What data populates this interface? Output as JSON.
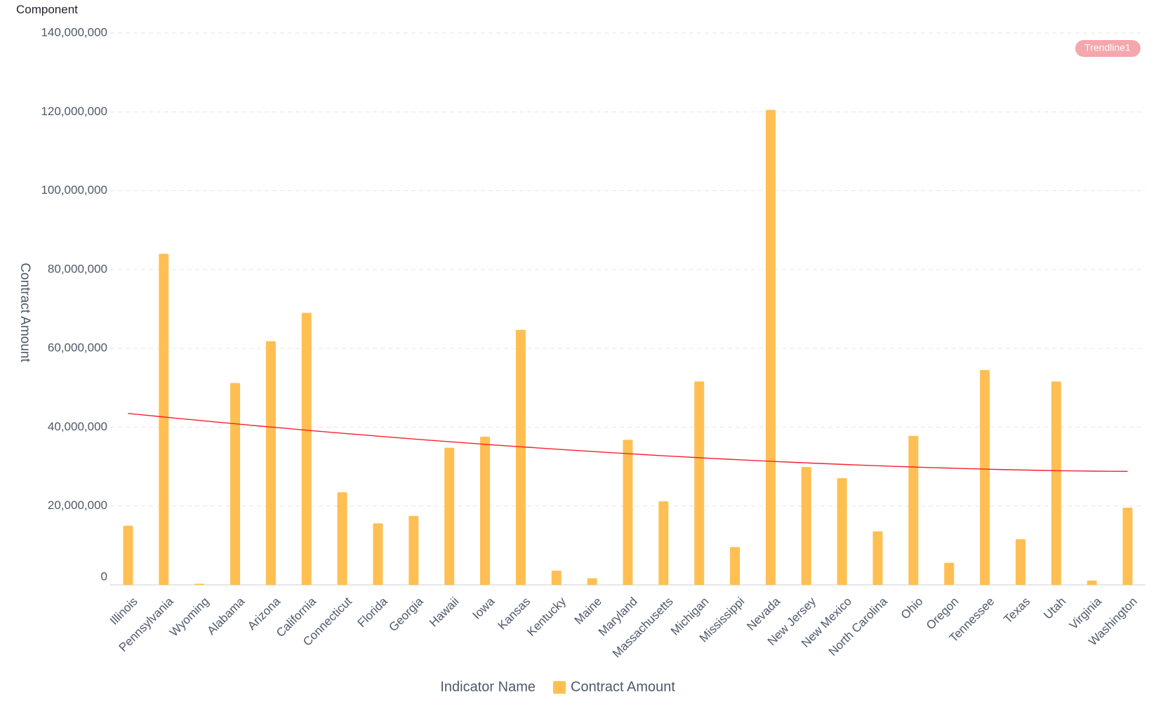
{
  "panel": {
    "title": "Component"
  },
  "chart_data": {
    "type": "bar",
    "title": "",
    "xlabel": "",
    "ylabel": "Contract Amount",
    "ylim": [
      0,
      140000000
    ],
    "yticks": [
      0,
      20000000,
      40000000,
      60000000,
      80000000,
      100000000,
      120000000,
      140000000
    ],
    "ytick_labels": [
      "0",
      "20,000,000",
      "40,000,000",
      "60,000,000",
      "80,000,000",
      "100,000,000",
      "120,000,000",
      "140,000,000"
    ],
    "grid": true,
    "categories": [
      "Illinois",
      "Pennsylvania",
      "Wyoming",
      "Alabama",
      "Arizona",
      "California",
      "Connecticut",
      "Florida",
      "Georgia",
      "Hawaii",
      "Iowa",
      "Kansas",
      "Kentucky",
      "Maine",
      "Maryland",
      "Massachusetts",
      "Michigan",
      "Mississippi",
      "Nevada",
      "New Jersey",
      "New Mexico",
      "North Carolina",
      "Ohio",
      "Oregon",
      "Tennessee",
      "Texas",
      "Utah",
      "Virginia",
      "Washington"
    ],
    "series": [
      {
        "name": "Contract Amount",
        "color": "#ffbf52",
        "values": [
          15000000,
          84000000,
          300000,
          51200000,
          61800000,
          69000000,
          23500000,
          15600000,
          17500000,
          34800000,
          37600000,
          64700000,
          3600000,
          1700000,
          36800000,
          21200000,
          51600000,
          9600000,
          120500000,
          29900000,
          27100000,
          13600000,
          37800000,
          5600000,
          54500000,
          11600000,
          51600000,
          1100000,
          19600000
        ]
      }
    ],
    "trendline": {
      "name": "Trendline1",
      "color": "#f5222d",
      "badge_color": "#f4a7ad",
      "start_value": 43500000,
      "end_value": 28800000
    },
    "legend": {
      "position": "bottom",
      "title": "Indicator Name",
      "items": [
        "Contract Amount"
      ]
    }
  }
}
